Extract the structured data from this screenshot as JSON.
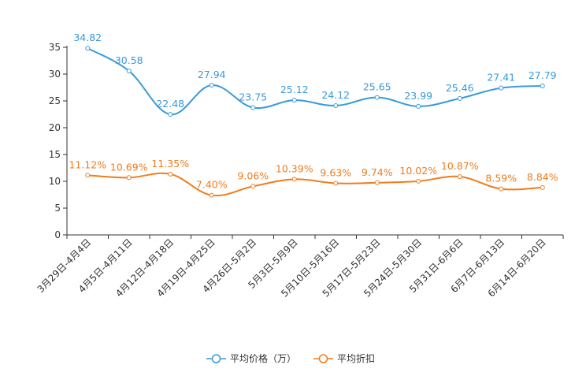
{
  "chart_data": {
    "type": "line",
    "categories": [
      "3月29日-4月4日",
      "4月5日-4月11日",
      "4月12日-4月18日",
      "4月19日-4月25日",
      "4月26日-5月2日",
      "5月3日-5月9日",
      "5月10日-5月16日",
      "5月17日-5月23日",
      "5月24日-5月30日",
      "5月31日-6月6日",
      "6月7日-6月13日",
      "6月14日-6月20日"
    ],
    "series": [
      {
        "name": "平均价格（万）",
        "color": "#3a9ad9",
        "values": [
          34.82,
          30.58,
          22.48,
          27.94,
          23.75,
          25.12,
          24.12,
          25.65,
          23.99,
          25.46,
          27.41,
          27.79
        ],
        "labels": [
          "34.82",
          "30.58",
          "22.48",
          "27.94",
          "23.75",
          "25.12",
          "24.12",
          "25.65",
          "23.99",
          "25.46",
          "27.41",
          "27.79"
        ]
      },
      {
        "name": "平均折扣",
        "color": "#f07c1c",
        "values": [
          11.12,
          10.69,
          11.35,
          7.4,
          9.06,
          10.39,
          9.63,
          9.74,
          10.02,
          10.87,
          8.59,
          8.84
        ],
        "labels": [
          "11.12%",
          "10.69%",
          "11.35%",
          "7.40%",
          "9.06%",
          "10.39%",
          "9.63%",
          "9.74%",
          "10.02%",
          "10.87%",
          "8.59%",
          "8.84%"
        ]
      }
    ],
    "yaxis": {
      "min": 0,
      "max": 35,
      "ticks": [
        0,
        5,
        10,
        15,
        20,
        25,
        30,
        35
      ]
    },
    "title": "",
    "xlabel": "",
    "ylabel": "",
    "grid": false,
    "legend": "bottom-center"
  }
}
